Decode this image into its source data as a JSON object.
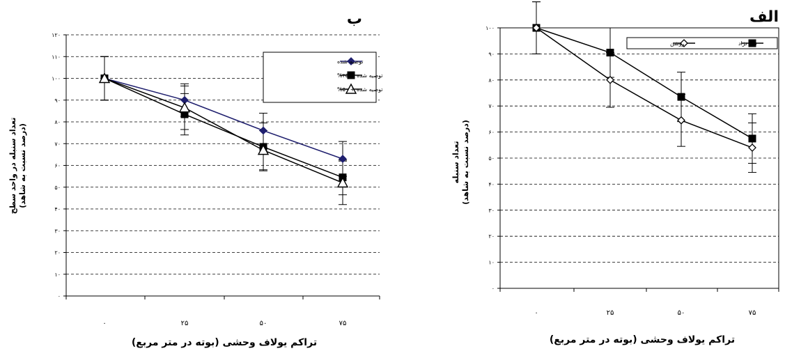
{
  "chart_data": [
    {
      "type": "line",
      "panel_label": "ب",
      "xlabel": "تراکم یولاف وحشی (بوته در متر مربع)",
      "ylabel_line1": "تعداد سنبله در واحد سطح",
      "ylabel_line2": "(درصد نسبت به شاهد)",
      "categories": [
        "۰",
        "۲۵",
        "۵۰",
        "۷۵"
      ],
      "ylim": [
        0,
        120
      ],
      "yticks": [
        "۰",
        "۱۰",
        "۲۰",
        "۳۰",
        "۴۰",
        "۵۰",
        "۶۰",
        "۷۰",
        "۸۰",
        "۹۰",
        "۱۰۰",
        "۱۱۰",
        "۱۲۰"
      ],
      "grid": true,
      "legend_position": "top-right",
      "series": [
        {
          "name": "توصیه شده",
          "marker": "diamond-filled",
          "color": "#1f1f6e",
          "values": [
            100,
            90,
            76,
            63
          ],
          "errors": [
            10,
            7.5,
            8,
            8
          ]
        },
        {
          "name": "توصیه شده + ۲۵%",
          "marker": "square-filled",
          "color": "#000000",
          "values": [
            100,
            83.5,
            68.5,
            54.5
          ],
          "errors": [
            10,
            9.5,
            11,
            8
          ]
        },
        {
          "name": "توصیه شده + ۵۰%",
          "marker": "triangle-open",
          "color": "#000000",
          "values": [
            100,
            86.5,
            67,
            52
          ],
          "errors": [
            10,
            10,
            9,
            10
          ]
        }
      ]
    },
    {
      "type": "line",
      "panel_label": "الف",
      "xlabel": "تراکم یولاف وحشی (بوته در متر مربع)",
      "ylabel_line1": "تعداد سنبله",
      "ylabel_line2": "(درصد نسبت به شاهد)",
      "categories": [
        "۰",
        "۲۵",
        "۵۰",
        "۷۵"
      ],
      "ylim": [
        0,
        100
      ],
      "yticks": [
        "۰",
        "۱۰",
        "۲۰",
        "۳۰",
        "۴۰",
        "۵۰",
        "۶۰",
        "۷۰",
        "۸۰",
        "۹۰",
        "۱۰۰"
      ],
      "grid": true,
      "legend_position": "top-right",
      "series": [
        {
          "name": "نیک نژاد",
          "marker": "square-filled",
          "color": "#000000",
          "values": [
            100,
            90.5,
            73.5,
            57.5
          ],
          "errors": [
            10,
            9.5,
            9.5,
            9.5
          ]
        },
        {
          "name": "روشن",
          "marker": "diamond-open",
          "color": "#000000",
          "values": [
            100,
            80,
            64.5,
            54
          ],
          "errors": [
            10,
            10.5,
            10,
            9.5
          ]
        }
      ]
    }
  ]
}
